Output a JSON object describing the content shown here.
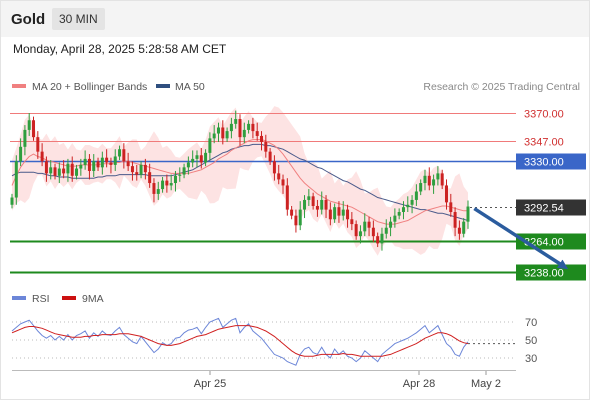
{
  "header": {
    "title": "Gold",
    "timeframe": "30 MIN"
  },
  "date_line": "Monday, April 28, 2025 5:28:58 AM CET",
  "legend": {
    "ma20": "MA 20 + Bollinger Bands",
    "ma50": "MA 50",
    "credit": "Research © 2025 Trading Central",
    "rsi": "RSI",
    "rsi_ma": "9MA"
  },
  "colors": {
    "up": "#2e9e3e",
    "down": "#cc2222",
    "ma20": "#f08080",
    "ma50": "#4a5a8a",
    "band_fill": "#fde3e3",
    "resistance": "#f07a7a",
    "pivot": "#3a66c8",
    "support": "#1e8a1e",
    "current": "#333333",
    "arrow": "#2b5c9e",
    "rsi": "#6c86d8",
    "rsi_ma": "#d02020"
  },
  "chart_data": [
    {
      "type": "candlestick",
      "x_ticks": [
        "Apr 25",
        "Apr 28",
        "May 2"
      ],
      "ylim": [
        3221,
        3388
      ],
      "levels": [
        {
          "label": "3370.00",
          "value": 3370,
          "kind": "resistance"
        },
        {
          "label": "3347.00",
          "value": 3347,
          "kind": "resistance"
        },
        {
          "label": "3330.00",
          "value": 3330,
          "kind": "pivot"
        },
        {
          "label": "3292.54",
          "value": 3292.54,
          "kind": "current"
        },
        {
          "label": "3264.00",
          "value": 3264,
          "kind": "support"
        },
        {
          "label": "3238.00",
          "value": 3238,
          "kind": "support"
        }
      ],
      "close": [
        3300,
        3330,
        3342,
        3356,
        3364,
        3350,
        3338,
        3330,
        3320,
        3325,
        3318,
        3324,
        3320,
        3328,
        3318,
        3324,
        3327,
        3332,
        3322,
        3330,
        3325,
        3333,
        3329,
        3327,
        3334,
        3340,
        3330,
        3326,
        3321,
        3319,
        3327,
        3321,
        3312,
        3303,
        3307,
        3314,
        3310,
        3312,
        3318,
        3319,
        3325,
        3329,
        3332,
        3335,
        3329,
        3337,
        3349,
        3353,
        3358,
        3349,
        3355,
        3361,
        3365,
        3350,
        3356,
        3361,
        3355,
        3351,
        3346,
        3338,
        3330,
        3320,
        3315,
        3310,
        3290,
        3285,
        3277,
        3290,
        3298,
        3301,
        3293,
        3290,
        3298,
        3290,
        3282,
        3292,
        3285,
        3290,
        3282,
        3278,
        3268,
        3272,
        3280,
        3275,
        3268,
        3262,
        3270,
        3275,
        3280,
        3285,
        3288,
        3292,
        3294,
        3298,
        3305,
        3312,
        3318,
        3310,
        3315,
        3320,
        3310,
        3296,
        3288,
        3275,
        3270,
        3280,
        3292.54
      ],
      "open_offsets": "derived",
      "ma20": [
        3310,
        3318,
        3325,
        3330,
        3334,
        3336,
        3334,
        3333,
        3331,
        3330,
        3329,
        3328,
        3327,
        3326,
        3326,
        3326,
        3327,
        3327,
        3327,
        3327,
        3327,
        3328,
        3328,
        3328,
        3329,
        3329,
        3330,
        3330,
        3329,
        3328,
        3327,
        3326,
        3325,
        3324,
        3323,
        3322,
        3321,
        3320,
        3320,
        3320,
        3320,
        3320,
        3321,
        3322,
        3323,
        3325,
        3327,
        3329,
        3332,
        3334,
        3336,
        3339,
        3341,
        3343,
        3345,
        3347,
        3348,
        3348,
        3348,
        3347,
        3345,
        3343,
        3340,
        3336,
        3331,
        3326,
        3321,
        3316,
        3312,
        3309,
        3306,
        3303,
        3301,
        3299,
        3297,
        3296,
        3295,
        3294,
        3293,
        3292,
        3290,
        3288,
        3286,
        3284,
        3282,
        3280,
        3279,
        3278,
        3278,
        3278,
        3279,
        3280,
        3281,
        3283,
        3285,
        3287,
        3289,
        3290,
        3291,
        3292,
        3293,
        3293,
        3292,
        3291,
        3290,
        3289,
        3289
      ],
      "ma50": [
        3318,
        3320,
        3321,
        3321,
        3321,
        3321,
        3320,
        3320,
        3319,
        3318,
        3318,
        3317,
        3317,
        3317,
        3316,
        3316,
        3316,
        3316,
        3316,
        3316,
        3317,
        3317,
        3318,
        3318,
        3318,
        3319,
        3319,
        3319,
        3319,
        3319,
        3319,
        3319,
        3318,
        3318,
        3318,
        3318,
        3318,
        3318,
        3319,
        3320,
        3321,
        3322,
        3323,
        3325,
        3327,
        3329,
        3331,
        3333,
        3335,
        3337,
        3338,
        3340,
        3341,
        3342,
        3343,
        3343,
        3344,
        3344,
        3344,
        3343,
        3343,
        3342,
        3341,
        3340,
        3338,
        3336,
        3334,
        3332,
        3331,
        3329,
        3327,
        3325,
        3324,
        3322,
        3320,
        3318,
        3316,
        3314,
        3313,
        3311,
        3309,
        3307,
        3306,
        3304,
        3302,
        3300,
        3299,
        3298,
        3297,
        3296,
        3295,
        3294,
        3293,
        3292,
        3291,
        3290,
        3290,
        3289,
        3288,
        3287,
        3287,
        3286,
        3285,
        3284,
        3283,
        3282,
        3281
      ],
      "forecast_path": [
        [
          107,
          3292.54
        ],
        [
          119,
          3238
        ]
      ]
    },
    {
      "type": "line",
      "title": "RSI",
      "ylim": [
        20,
        80
      ],
      "y_ticks": [
        70,
        50,
        30
      ],
      "rsi": [
        60,
        64,
        68,
        70,
        72,
        66,
        60,
        55,
        52,
        55,
        50,
        54,
        50,
        56,
        50,
        55,
        57,
        60,
        52,
        58,
        54,
        60,
        56,
        55,
        60,
        64,
        56,
        52,
        48,
        46,
        54,
        48,
        42,
        36,
        40,
        47,
        44,
        46,
        52,
        53,
        58,
        61,
        62,
        64,
        57,
        64,
        70,
        72,
        74,
        64,
        68,
        72,
        74,
        58,
        64,
        68,
        60,
        56,
        52,
        46,
        40,
        34,
        32,
        30,
        26,
        24,
        22,
        34,
        40,
        42,
        36,
        34,
        42,
        34,
        30,
        40,
        34,
        38,
        32,
        30,
        26,
        30,
        38,
        34,
        30,
        26,
        34,
        38,
        42,
        46,
        48,
        50,
        52,
        55,
        58,
        62,
        66,
        58,
        62,
        66,
        56,
        46,
        42,
        34,
        32,
        42,
        48
      ],
      "rsi_ma": [
        58,
        60,
        62,
        64,
        65,
        65,
        64,
        63,
        61,
        59,
        57,
        56,
        55,
        54,
        53,
        53,
        53,
        54,
        54,
        55,
        55,
        56,
        56,
        56,
        56,
        57,
        57,
        57,
        56,
        55,
        54,
        52,
        50,
        48,
        46,
        45,
        44,
        44,
        45,
        46,
        48,
        50,
        52,
        54,
        55,
        56,
        58,
        60,
        62,
        63,
        64,
        65,
        66,
        66,
        66,
        66,
        65,
        64,
        62,
        60,
        57,
        54,
        50,
        46,
        42,
        38,
        35,
        33,
        32,
        32,
        32,
        33,
        34,
        34,
        34,
        34,
        34,
        35,
        34,
        34,
        33,
        32,
        32,
        32,
        32,
        32,
        32,
        33,
        34,
        36,
        38,
        40,
        42,
        44,
        46,
        49,
        52,
        54,
        56,
        58,
        58,
        57,
        55,
        52,
        49,
        47,
        46
      ]
    }
  ]
}
